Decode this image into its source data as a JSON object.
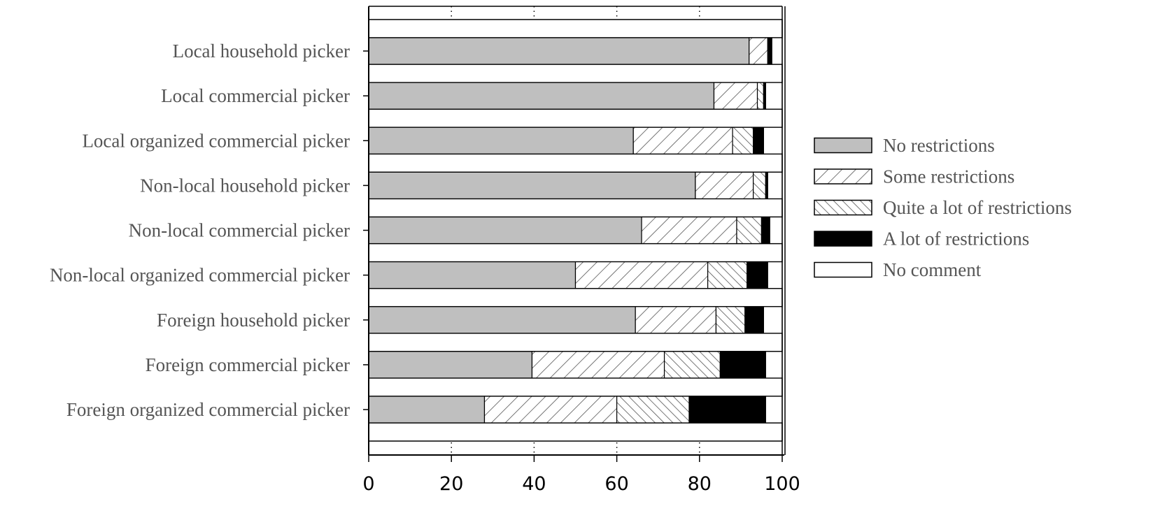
{
  "chart_data": {
    "type": "bar",
    "orientation": "horizontal",
    "stacked": true,
    "categories": [
      "Local household picker",
      "Local commercial picker",
      "Local organized commercial picker",
      "Non-local household picker",
      "Non-local commercial picker",
      "Non-local organized commercial picker",
      "Foreign household picker",
      "Foreign commercial picker",
      "Foreign organized commercial picker"
    ],
    "series": [
      {
        "name": "No restrictions",
        "fill": "gray",
        "color": "#bfbfbf",
        "values": [
          92,
          83.5,
          64,
          79,
          66,
          50,
          64.5,
          39.5,
          28
        ]
      },
      {
        "name": "Some restrictions",
        "fill": "hatch-right",
        "color": "#ffffff",
        "values": [
          4.5,
          10.5,
          24,
          14,
          23,
          32,
          19.5,
          32,
          32
        ]
      },
      {
        "name": "Quite a lot of restrictions",
        "fill": "hatch-left",
        "color": "#ffffff",
        "values": [
          0,
          1.5,
          5,
          3,
          6,
          9.5,
          7,
          13.5,
          17.5
        ]
      },
      {
        "name": "A lot of restrictions",
        "fill": "solid",
        "color": "#000000",
        "values": [
          1,
          0.5,
          2.5,
          0.5,
          2,
          5,
          4.5,
          11,
          18.5
        ]
      },
      {
        "name": "No comment",
        "fill": "white",
        "color": "#ffffff",
        "values": [
          2.5,
          4,
          4.5,
          3.5,
          3,
          3.5,
          4.5,
          4,
          4
        ]
      }
    ],
    "x_ticks": [
      "0",
      "20",
      "40",
      "60",
      "80",
      "100"
    ],
    "xlim": [
      0,
      100
    ],
    "grid": "vertical dotted",
    "legend_position": "right",
    "title": "",
    "xlabel": "",
    "ylabel": ""
  }
}
